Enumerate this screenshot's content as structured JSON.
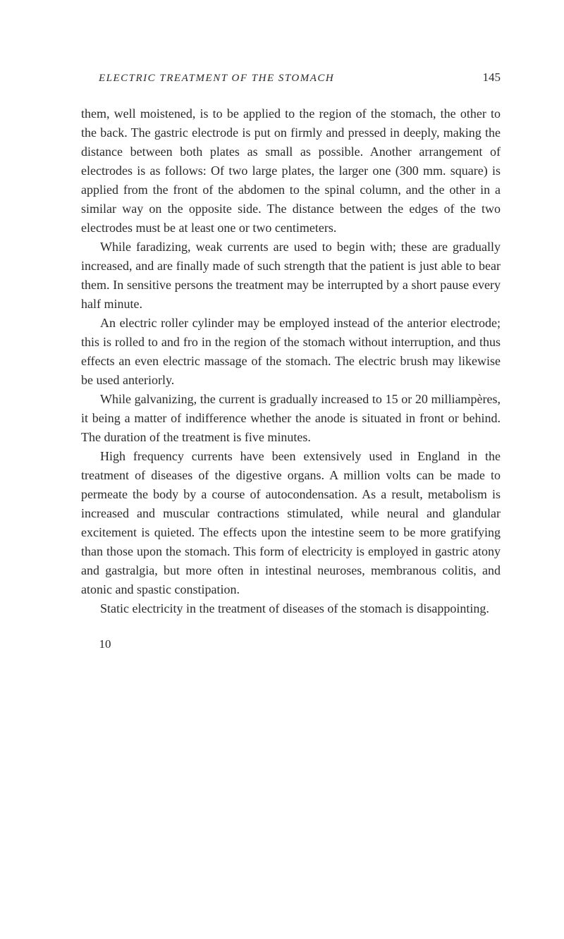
{
  "header": {
    "running_title": "ELECTRIC TREATMENT OF THE STOMACH",
    "page_number": "145"
  },
  "paragraphs": [
    "them, well moistened, is to be applied to the region of the stomach, the other to the back. The gastric electrode is put on firmly and pressed in deeply, making the distance between both plates as small as possible. Another arrangement of electrodes is as follows: Of two large plates, the larger one (300 mm. square) is applied from the front of the abdomen to the spinal column, and the other in a similar way on the opposite side. The distance between the edges of the two electrodes must be at least one or two centimeters.",
    "While faradizing, weak currents are used to begin with; these are gradually increased, and are finally made of such strength that the patient is just able to bear them. In sensitive persons the treatment may be interrupted by a short pause every half minute.",
    "An electric roller cylinder may be employed instead of the anterior electrode; this is rolled to and fro in the region of the stomach without interruption, and thus effects an even electric massage of the stomach. The electric brush may likewise be used anteriorly.",
    "While galvanizing, the current is gradually increased to 15 or 20 milliampères, it being a matter of indifference whether the anode is situated in front or behind. The duration of the treatment is five minutes.",
    "High frequency currents have been extensively used in England in the treatment of diseases of the digestive organs. A million volts can be made to permeate the body by a course of autocondensation. As a result, metabolism is increased and muscular contractions stimulated, while neural and glandular excitement is quieted. The effects upon the intestine seem to be more gratifying than those upon the stomach. This form of electricity is employed in gastric atony and gastralgia, but more often in intestinal neuroses, membranous colitis, and atonic and spastic constipation.",
    "Static electricity in the treatment of diseases of the stomach is disappointing."
  ],
  "footer_num": "10"
}
